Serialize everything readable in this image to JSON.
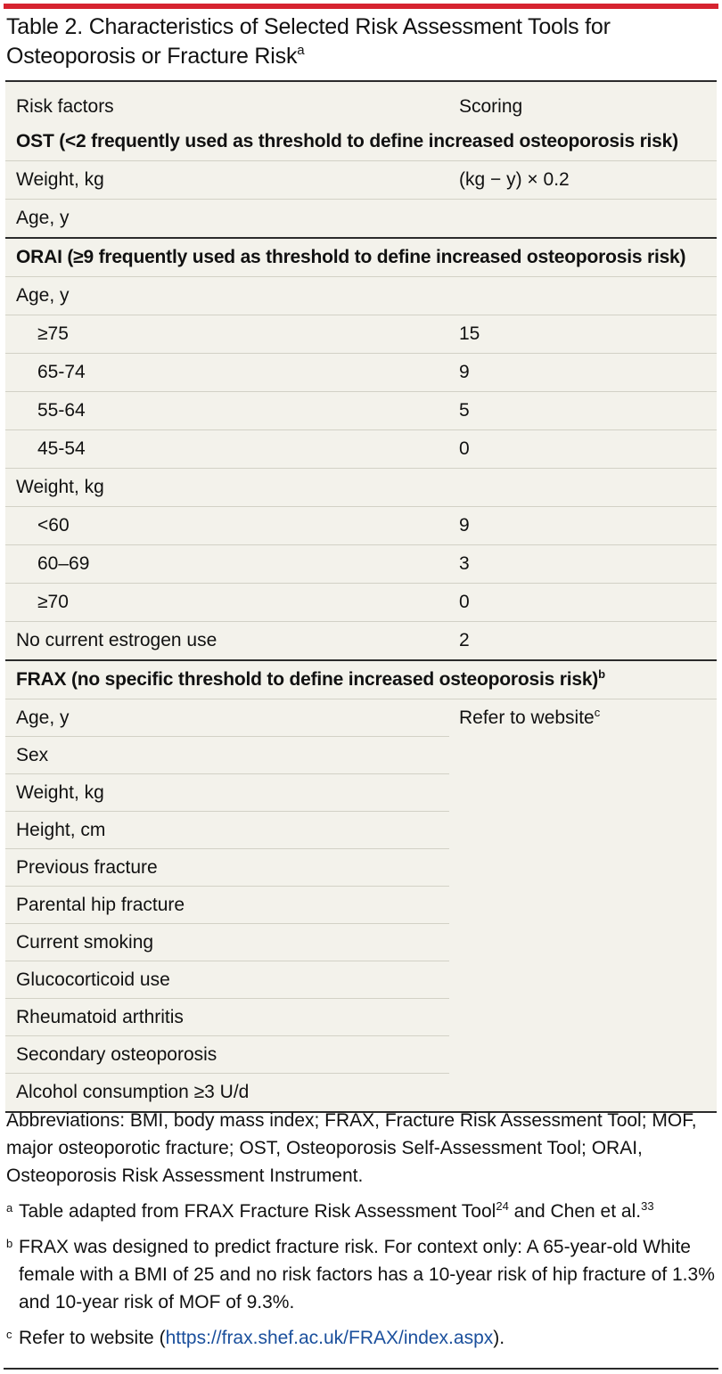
{
  "title": {
    "text": "Table 2. Characteristics of Selected Risk Assessment Tools for Osteoporosis or Fracture Risk",
    "sup": "a"
  },
  "table": {
    "headers": [
      "Risk factors",
      "Scoring"
    ],
    "rows": [
      {
        "kind": "heading",
        "label": "OST (<2 frequently used as threshold to define increased osteoporosis risk)",
        "score": ""
      },
      {
        "kind": "item",
        "label": "Weight, kg",
        "score": "(kg − y) × 0.2"
      },
      {
        "kind": "item",
        "label": "Age, y",
        "score": ""
      },
      {
        "kind": "heading",
        "label": "ORAI (≥9 frequently used as threshold to define increased osteoporosis risk)",
        "score": ""
      },
      {
        "kind": "item",
        "label": "Age, y",
        "score": ""
      },
      {
        "kind": "sub",
        "label": "≥75",
        "score": "15"
      },
      {
        "kind": "sub",
        "label": "65-74",
        "score": "9"
      },
      {
        "kind": "sub",
        "label": "55-64",
        "score": "5"
      },
      {
        "kind": "sub",
        "label": "45-54",
        "score": "0"
      },
      {
        "kind": "item",
        "label": "Weight, kg",
        "score": ""
      },
      {
        "kind": "sub",
        "label": "<60",
        "score": "9"
      },
      {
        "kind": "sub",
        "label": "60–69",
        "score": "3"
      },
      {
        "kind": "sub",
        "label": "≥70",
        "score": "0"
      },
      {
        "kind": "item",
        "label": "No current estrogen use",
        "score": "2"
      },
      {
        "kind": "heading",
        "label": "FRAX (no specific threshold to define increased osteoporosis risk)",
        "sup": "b",
        "score": ""
      },
      {
        "kind": "item",
        "label": "Age, y",
        "score": "Refer to website",
        "score_sup": "c"
      },
      {
        "kind": "frax",
        "label": "Sex",
        "score": ""
      },
      {
        "kind": "frax",
        "label": "Weight, kg",
        "score": ""
      },
      {
        "kind": "frax",
        "label": "Height, cm",
        "score": ""
      },
      {
        "kind": "frax",
        "label": "Previous fracture",
        "score": ""
      },
      {
        "kind": "frax",
        "label": "Parental hip fracture",
        "score": ""
      },
      {
        "kind": "frax",
        "label": "Current smoking",
        "score": ""
      },
      {
        "kind": "frax",
        "label": "Glucocorticoid use",
        "score": ""
      },
      {
        "kind": "frax",
        "label": "Rheumatoid arthritis",
        "score": ""
      },
      {
        "kind": "frax",
        "label": "Secondary osteoporosis",
        "score": ""
      },
      {
        "kind": "frax",
        "label": "Alcohol consumption ≥3 U/d",
        "score": ""
      }
    ]
  },
  "notes": {
    "abbreviations": "Abbreviations: BMI, body mass index; FRAX, Fracture Risk Assessment Tool; MOF, major osteoporotic fracture; OST, Osteoporosis Self-Assessment Tool; ORAI, Osteoporosis Risk Assessment Instrument.",
    "footnote_a": {
      "mark": "a",
      "text_1": "Table adapted from FRAX Fracture Risk Assessment Tool",
      "ref_1": "24",
      "text_2": " and Chen et al.",
      "ref_2": "33"
    },
    "footnote_b": {
      "mark": "b",
      "text": "FRAX was designed to predict fracture risk. For context only: A 65-year-old White female with a BMI of 25 and no risk factors has a 10-year risk of hip fracture of 1.3% and 10-year risk of MOF of 9.3%."
    },
    "footnote_c": {
      "mark": "c",
      "prefix": "Refer to website (",
      "link": "https://frax.shef.ac.uk/FRAX/index.aspx",
      "suffix": ")."
    }
  }
}
